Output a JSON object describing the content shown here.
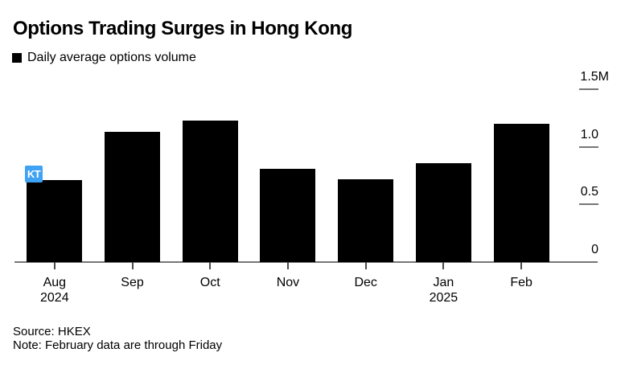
{
  "chart_data": {
    "type": "bar",
    "title": "Options Trading Surges in Hong Kong",
    "legend": "Daily average options volume",
    "unit": "M",
    "categories": [
      {
        "month": "Aug",
        "year": "2024"
      },
      {
        "month": "Sep"
      },
      {
        "month": "Oct"
      },
      {
        "month": "Nov"
      },
      {
        "month": "Dec"
      },
      {
        "month": "Jan",
        "year": "2025"
      },
      {
        "month": "Feb"
      }
    ],
    "values": [
      0.71,
      1.13,
      1.23,
      0.81,
      0.72,
      0.86,
      1.2
    ],
    "ylim": [
      0,
      1.5
    ],
    "yticks": [
      {
        "value": 0,
        "label": "0"
      },
      {
        "value": 0.5,
        "label": "0.5"
      },
      {
        "value": 1.0,
        "label": "1.0"
      },
      {
        "value": 1.5,
        "label": "1.5M"
      }
    ],
    "grid": false,
    "legend_position": "top-left",
    "bar_color": "#000000",
    "axis_color": "#767676",
    "tick_color": "#4a4a4a"
  },
  "annotation": {
    "label": "KT",
    "color": "#3FA2F4"
  },
  "footer": {
    "source": "Source: HKEX",
    "note": "Note: February data are through Friday"
  }
}
